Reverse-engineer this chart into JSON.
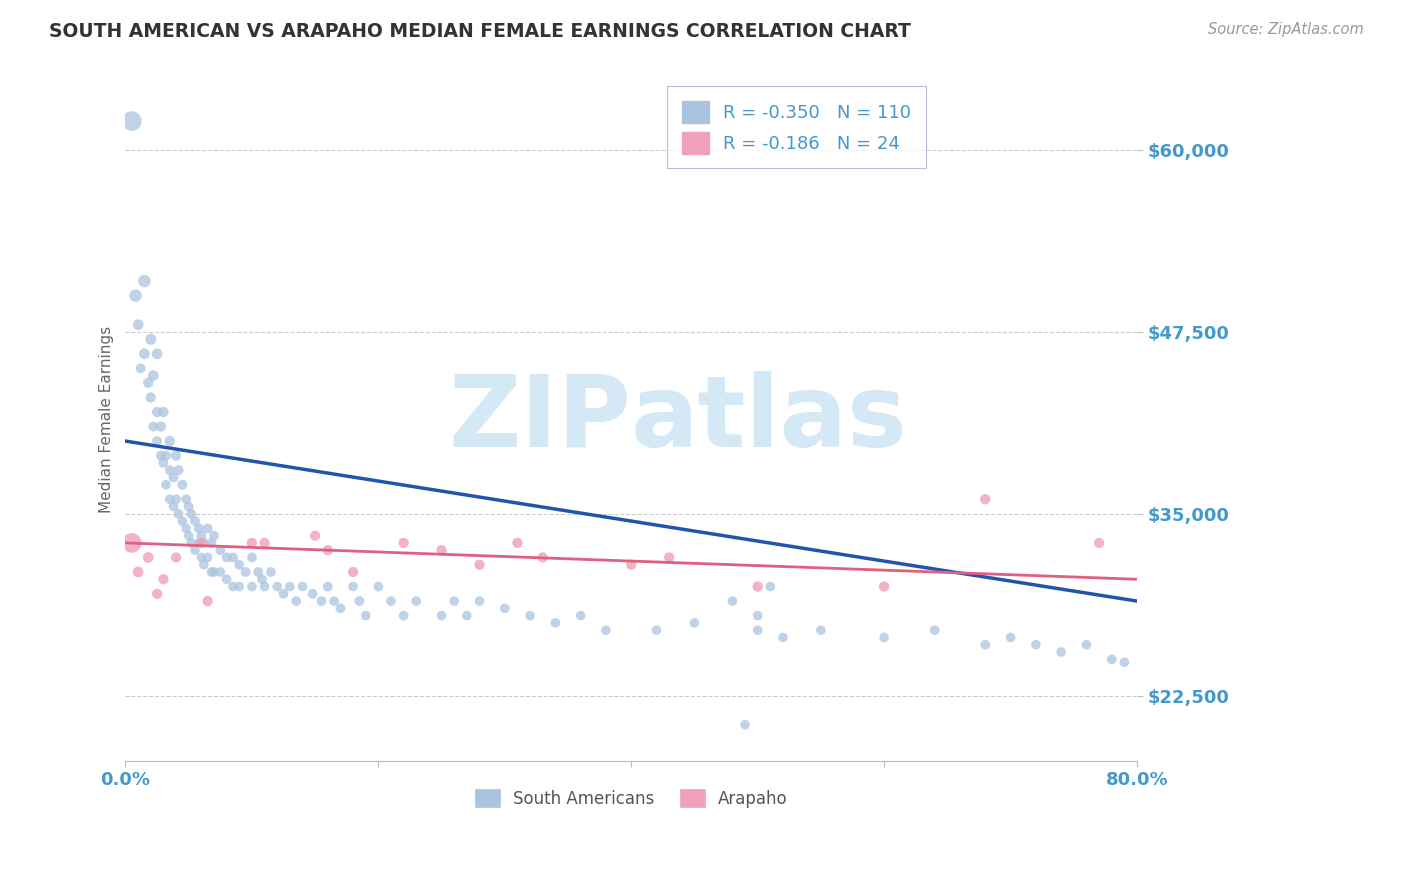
{
  "title": "SOUTH AMERICAN VS ARAPAHO MEDIAN FEMALE EARNINGS CORRELATION CHART",
  "source_text": "Source: ZipAtlas.com",
  "ylabel": "Median Female Earnings",
  "xlim": [
    0.0,
    0.8
  ],
  "ylim": [
    18000,
    65000
  ],
  "yticks": [
    22500,
    35000,
    47500,
    60000
  ],
  "ytick_labels": [
    "$22,500",
    "$35,000",
    "$47,500",
    "$60,000"
  ],
  "xticks": [
    0.0,
    0.2,
    0.4,
    0.6,
    0.8
  ],
  "xtick_labels": [
    "0.0%",
    "",
    "",
    "",
    "80.0%"
  ],
  "south_american_R": -0.35,
  "south_american_N": 110,
  "arapaho_R": -0.186,
  "arapaho_N": 24,
  "blue_scatter_color": "#aac4e0",
  "pink_scatter_color": "#f0a0b8",
  "blue_line_color": "#2255aa",
  "pink_line_color": "#e06080",
  "axis_tick_color": "#4499cc",
  "watermark_color": "#d4e8f5",
  "background_color": "#ffffff",
  "sa_x": [
    0.005,
    0.008,
    0.01,
    0.012,
    0.015,
    0.015,
    0.018,
    0.02,
    0.02,
    0.022,
    0.022,
    0.025,
    0.025,
    0.025,
    0.028,
    0.028,
    0.03,
    0.03,
    0.032,
    0.032,
    0.035,
    0.035,
    0.035,
    0.038,
    0.038,
    0.04,
    0.04,
    0.042,
    0.042,
    0.045,
    0.045,
    0.048,
    0.048,
    0.05,
    0.05,
    0.052,
    0.052,
    0.055,
    0.055,
    0.058,
    0.058,
    0.06,
    0.06,
    0.062,
    0.062,
    0.065,
    0.065,
    0.068,
    0.068,
    0.07,
    0.07,
    0.075,
    0.075,
    0.08,
    0.08,
    0.085,
    0.085,
    0.09,
    0.09,
    0.095,
    0.1,
    0.1,
    0.105,
    0.108,
    0.11,
    0.115,
    0.12,
    0.125,
    0.13,
    0.135,
    0.14,
    0.148,
    0.155,
    0.16,
    0.165,
    0.17,
    0.18,
    0.185,
    0.19,
    0.2,
    0.21,
    0.22,
    0.23,
    0.25,
    0.26,
    0.27,
    0.28,
    0.3,
    0.32,
    0.34,
    0.36,
    0.38,
    0.42,
    0.45,
    0.5,
    0.52,
    0.55,
    0.6,
    0.64,
    0.68,
    0.7,
    0.72,
    0.74,
    0.76,
    0.78,
    0.79,
    0.5,
    0.51,
    0.49,
    0.48
  ],
  "sa_y": [
    62000,
    50000,
    48000,
    45000,
    51000,
    46000,
    44000,
    47000,
    43000,
    44500,
    41000,
    46000,
    42000,
    40000,
    41000,
    39000,
    42000,
    38500,
    39000,
    37000,
    40000,
    38000,
    36000,
    37500,
    35500,
    39000,
    36000,
    38000,
    35000,
    37000,
    34500,
    36000,
    34000,
    35500,
    33500,
    35000,
    33000,
    34500,
    32500,
    34000,
    33000,
    33500,
    32000,
    33000,
    31500,
    34000,
    32000,
    33000,
    31000,
    33500,
    31000,
    32500,
    31000,
    32000,
    30500,
    32000,
    30000,
    31500,
    30000,
    31000,
    32000,
    30000,
    31000,
    30500,
    30000,
    31000,
    30000,
    29500,
    30000,
    29000,
    30000,
    29500,
    29000,
    30000,
    29000,
    28500,
    30000,
    29000,
    28000,
    30000,
    29000,
    28000,
    29000,
    28000,
    29000,
    28000,
    29000,
    28500,
    28000,
    27500,
    28000,
    27000,
    27000,
    27500,
    27000,
    26500,
    27000,
    26500,
    27000,
    26000,
    26500,
    26000,
    25500,
    26000,
    25000,
    24800,
    28000,
    30000,
    20500,
    29000
  ],
  "sa_sizes": [
    200,
    80,
    60,
    50,
    80,
    60,
    55,
    65,
    55,
    60,
    50,
    60,
    55,
    50,
    55,
    50,
    55,
    50,
    52,
    48,
    55,
    50,
    48,
    52,
    48,
    55,
    50,
    52,
    48,
    52,
    48,
    50,
    48,
    50,
    48,
    50,
    48,
    50,
    48,
    50,
    48,
    50,
    48,
    50,
    48,
    50,
    48,
    50,
    48,
    50,
    48,
    50,
    48,
    50,
    48,
    50,
    48,
    50,
    48,
    50,
    50,
    48,
    50,
    48,
    48,
    50,
    48,
    50,
    48,
    50,
    48,
    50,
    48,
    50,
    48,
    50,
    48,
    50,
    48,
    50,
    48,
    50,
    48,
    48,
    48,
    48,
    48,
    48,
    48,
    48,
    48,
    48,
    48,
    48,
    48,
    48,
    48,
    48,
    48,
    48,
    48,
    48,
    48,
    48,
    48,
    48,
    48,
    48,
    48,
    48
  ],
  "ar_x": [
    0.005,
    0.01,
    0.018,
    0.025,
    0.03,
    0.04,
    0.06,
    0.065,
    0.1,
    0.11,
    0.15,
    0.16,
    0.18,
    0.22,
    0.25,
    0.28,
    0.31,
    0.33,
    0.4,
    0.43,
    0.5,
    0.6,
    0.68,
    0.77
  ],
  "ar_y": [
    33000,
    31000,
    32000,
    29500,
    30500,
    32000,
    33000,
    29000,
    33000,
    33000,
    33500,
    32500,
    31000,
    33000,
    32500,
    31500,
    33000,
    32000,
    31500,
    32000,
    30000,
    30000,
    36000,
    33000
  ],
  "ar_sizes": [
    200,
    60,
    60,
    55,
    55,
    55,
    55,
    55,
    55,
    55,
    55,
    55,
    55,
    55,
    55,
    55,
    55,
    55,
    55,
    55,
    55,
    55,
    55,
    55
  ],
  "sa_line_x0": 0.0,
  "sa_line_x1": 0.8,
  "sa_line_y0": 40000,
  "sa_line_y1": 29000,
  "ar_line_x0": 0.0,
  "ar_line_x1": 0.8,
  "ar_line_y0": 33000,
  "ar_line_y1": 30500
}
